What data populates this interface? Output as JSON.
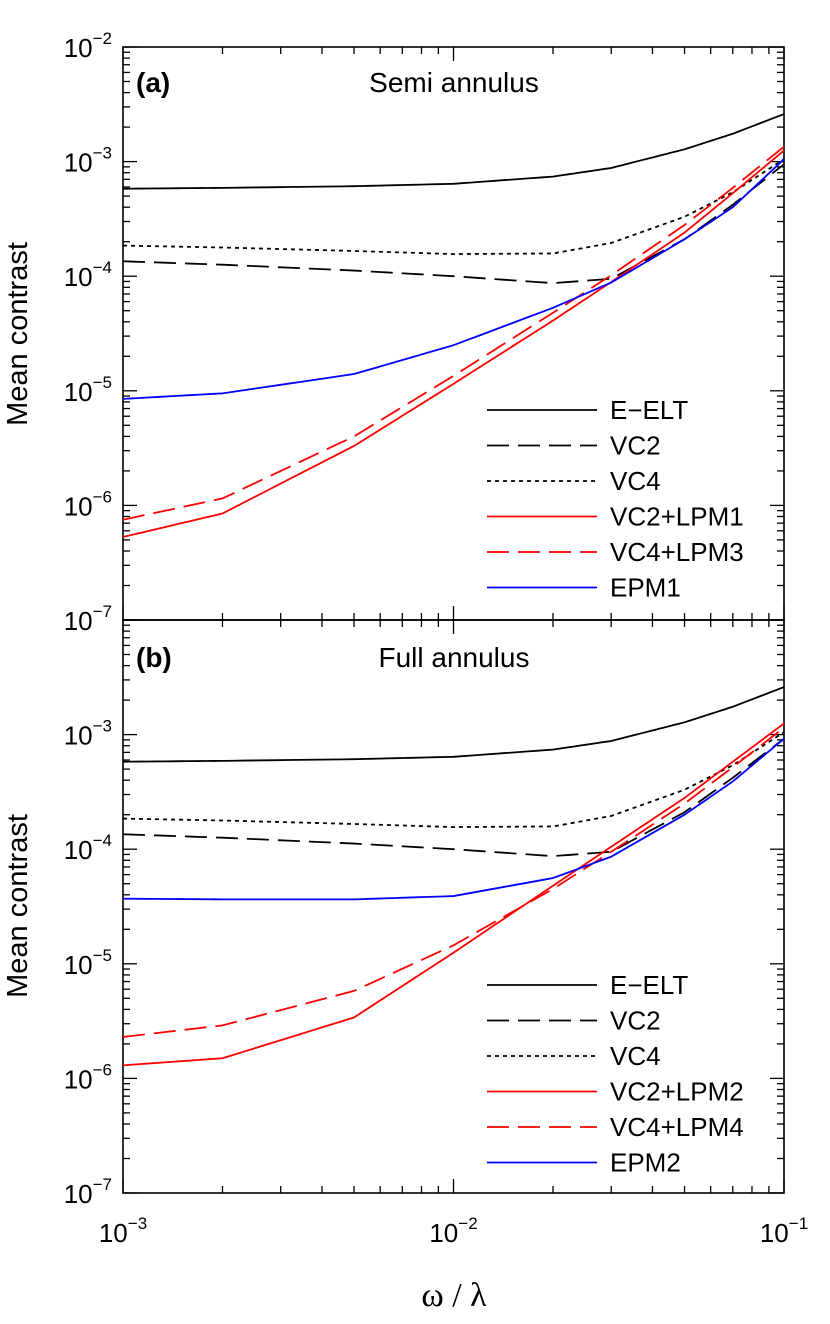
{
  "chart_data": [
    {
      "type": "line",
      "panel_label": "(a)",
      "title": "Semi annulus",
      "xlabel": "ω / λ",
      "ylabel": "Mean contrast",
      "xscale": "log",
      "yscale": "log",
      "xlim": [
        0.001,
        0.1
      ],
      "ylim": [
        1e-07,
        0.01
      ],
      "legend_position": "bottom-right",
      "x_ticks": [
        {
          "base": "10",
          "exp": "−3"
        },
        {
          "base": "10",
          "exp": "−2"
        },
        {
          "base": "10",
          "exp": "−1"
        }
      ],
      "y_ticks": [
        {
          "base": "10",
          "exp": "−7"
        },
        {
          "base": "10",
          "exp": "−6"
        },
        {
          "base": "10",
          "exp": "−5"
        },
        {
          "base": "10",
          "exp": "−4"
        },
        {
          "base": "10",
          "exp": "−3"
        },
        {
          "base": "10",
          "exp": "−2"
        }
      ],
      "x": [
        0.001,
        0.002,
        0.005,
        0.01,
        0.02,
        0.03,
        0.05,
        0.07,
        0.1
      ],
      "series": [
        {
          "name": "E−ELT",
          "color": "#000000",
          "dash": "solid",
          "values": [
            0.00058,
            0.00059,
            0.00061,
            0.00064,
            0.00074,
            0.00088,
            0.00128,
            0.00175,
            0.0026
          ]
        },
        {
          "name": "VC2",
          "color": "#000000",
          "dash": "long",
          "values": [
            0.000135,
            0.000126,
            0.000112,
            0.0001,
            8.7e-05,
            9.5e-05,
            0.00021,
            0.00042,
            0.00095
          ]
        },
        {
          "name": "VC4",
          "color": "#000000",
          "dash": "dotted",
          "values": [
            0.000185,
            0.000178,
            0.000166,
            0.000156,
            0.000158,
            0.000195,
            0.00033,
            0.00054,
            0.00105
          ]
        },
        {
          "name": "VC2+LPM1",
          "color": "#ff0000",
          "dash": "solid",
          "values": [
            5.3e-07,
            8.5e-07,
            3.3e-06,
            1.15e-05,
            4.1e-05,
            8.9e-05,
            0.00024,
            0.00053,
            0.00125
          ]
        },
        {
          "name": "VC4+LPM3",
          "color": "#ff0000",
          "dash": "long",
          "values": [
            7.5e-07,
            1.15e-06,
            4e-06,
            1.35e-05,
            4.8e-05,
            0.000102,
            0.00028,
            0.00059,
            0.00135
          ]
        },
        {
          "name": "EPM1",
          "color": "#0000ff",
          "dash": "solid",
          "values": [
            8.5e-06,
            9.5e-06,
            1.4e-05,
            2.5e-05,
            5.3e-05,
            8.8e-05,
            0.00021,
            0.0004,
            0.00105
          ]
        }
      ]
    },
    {
      "type": "line",
      "panel_label": "(b)",
      "title": "Full annulus",
      "xlabel": "ω / λ",
      "ylabel": "Mean contrast",
      "xscale": "log",
      "yscale": "log",
      "xlim": [
        0.001,
        0.1
      ],
      "ylim": [
        1e-07,
        0.01
      ],
      "legend_position": "bottom-right",
      "x_ticks": [
        {
          "base": "10",
          "exp": "−3"
        },
        {
          "base": "10",
          "exp": "−2"
        },
        {
          "base": "10",
          "exp": "−1"
        }
      ],
      "y_ticks": [
        {
          "base": "10",
          "exp": "−7"
        },
        {
          "base": "10",
          "exp": "−6"
        },
        {
          "base": "10",
          "exp": "−5"
        },
        {
          "base": "10",
          "exp": "−4"
        },
        {
          "base": "10",
          "exp": "−3"
        }
      ],
      "x": [
        0.001,
        0.002,
        0.005,
        0.01,
        0.02,
        0.03,
        0.05,
        0.07,
        0.1
      ],
      "series": [
        {
          "name": "E−ELT",
          "color": "#000000",
          "dash": "solid",
          "values": [
            0.00058,
            0.00059,
            0.00061,
            0.00064,
            0.00074,
            0.00088,
            0.00128,
            0.00175,
            0.0026
          ]
        },
        {
          "name": "VC2",
          "color": "#000000",
          "dash": "long",
          "values": [
            0.000135,
            0.000126,
            0.000112,
            0.0001,
            8.7e-05,
            9.5e-05,
            0.00021,
            0.00042,
            0.00092
          ]
        },
        {
          "name": "VC4",
          "color": "#000000",
          "dash": "dotted",
          "values": [
            0.000185,
            0.000178,
            0.000166,
            0.000156,
            0.000158,
            0.000195,
            0.00033,
            0.00054,
            0.00105
          ]
        },
        {
          "name": "VC2+LPM2",
          "color": "#ff0000",
          "dash": "solid",
          "values": [
            1.3e-06,
            1.5e-06,
            3.4e-06,
            1.25e-05,
            4.8e-05,
            0.000105,
            0.00028,
            0.00058,
            0.00125
          ]
        },
        {
          "name": "VC4+LPM4",
          "color": "#ff0000",
          "dash": "long",
          "values": [
            2.3e-06,
            2.9e-06,
            5.8e-06,
            1.45e-05,
            4.5e-05,
            9.5e-05,
            0.00025,
            0.00052,
            0.00115
          ]
        },
        {
          "name": "EPM2",
          "color": "#0000ff",
          "dash": "solid",
          "values": [
            3.7e-05,
            3.65e-05,
            3.65e-05,
            3.9e-05,
            5.6e-05,
            8.6e-05,
            0.0002,
            0.00039,
            0.00092
          ]
        }
      ]
    }
  ]
}
